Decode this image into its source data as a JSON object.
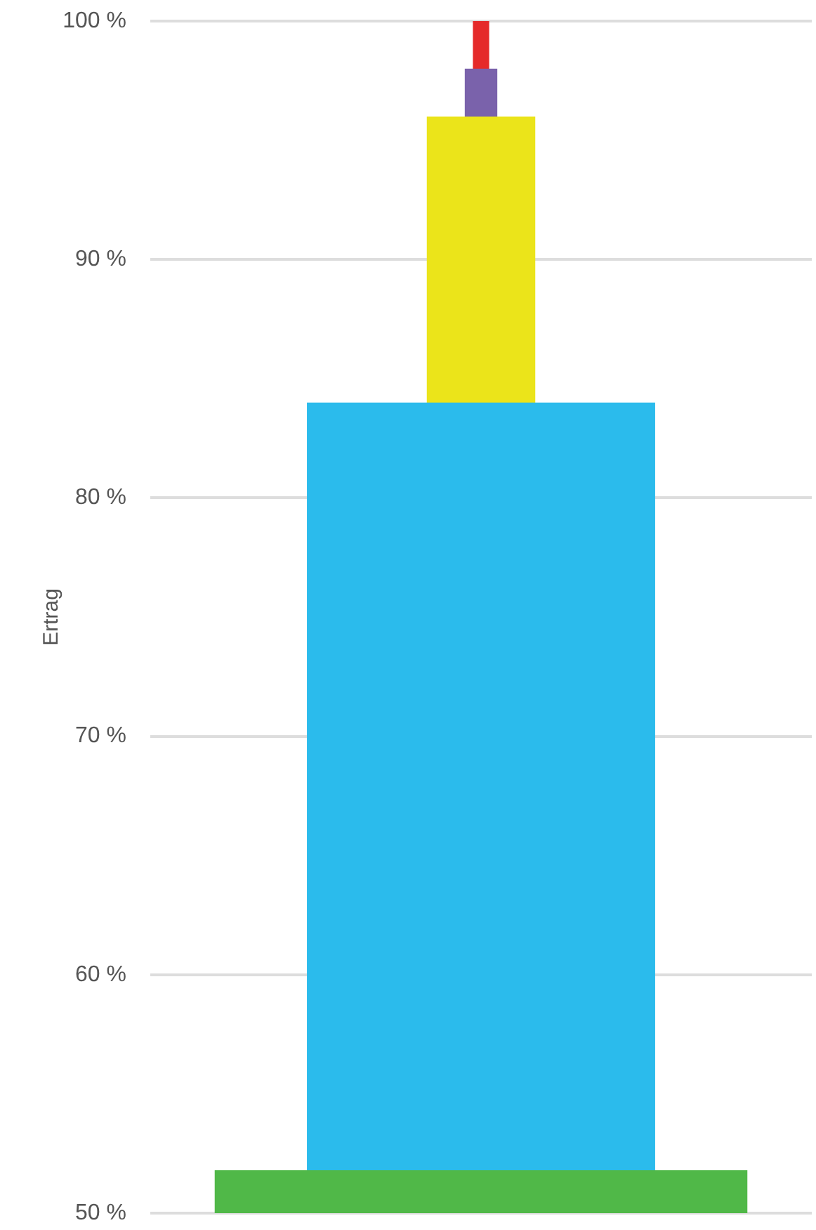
{
  "chart_data": {
    "type": "bar",
    "ylabel": "Ertrag",
    "categories": [
      null
    ],
    "series": [
      {
        "color": "#50b848",
        "values": [
          51.8
        ]
      },
      {
        "color": "#2bbbec",
        "values": [
          84
        ]
      },
      {
        "color": "#ebe41a",
        "values": [
          96
        ]
      },
      {
        "color": "#7a62ab",
        "values": [
          98
        ]
      },
      {
        "color": "#e52a2a",
        "values": [
          100
        ]
      }
    ],
    "ylim": [
      50,
      100
    ],
    "yticks": [
      {
        "value": 50,
        "label": "50 %"
      },
      {
        "value": 60,
        "label": "60 %"
      },
      {
        "value": 70,
        "label": "70 %"
      },
      {
        "value": 80,
        "label": "80 %"
      },
      {
        "value": 90,
        "label": "90 %"
      },
      {
        "value": 100,
        "label": "100 %"
      }
    ],
    "grid": "y",
    "tick_labels": "y"
  }
}
